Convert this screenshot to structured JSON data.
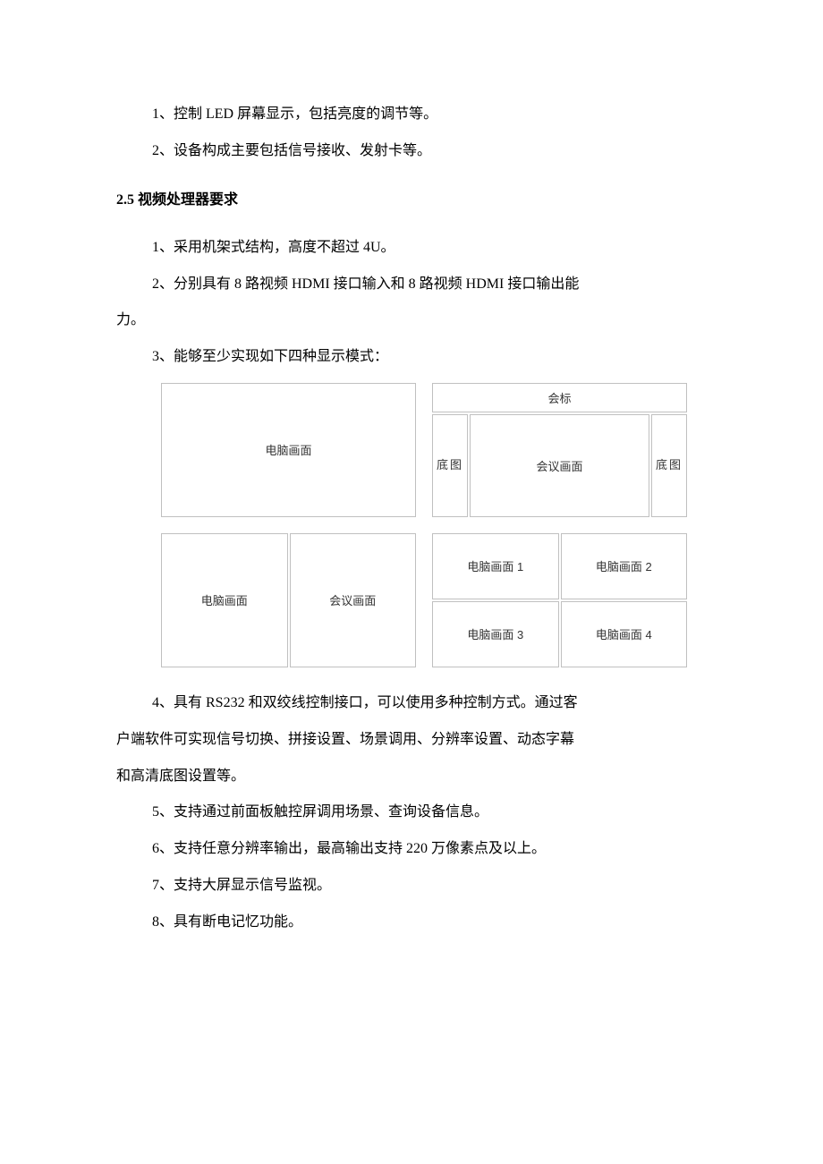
{
  "body": {
    "line1": "1、控制 LED 屏幕显示，包括亮度的调节等。",
    "line2": "2、设备构成主要包括信号接收、发射卡等。",
    "heading": "2.5 视频处理器要求",
    "line3": "1、采用机架式结构，高度不超过 4U。",
    "line4a": "2、分别具有 8 路视频 HDMI 接口输入和 8 路视频 HDMI 接口输出能",
    "line4b": "力。",
    "line5": "3、能够至少实现如下四种显示模式：",
    "line6": "4、具有 RS232 和双绞线控制接口，可以使用多种控制方式。通过客",
    "line6b": "户端软件可实现信号切换、拼接设置、场景调用、分辨率设置、动态字幕",
    "line6c": "和高清底图设置等。",
    "line7": "5、支持通过前面板触控屏调用场景、查询设备信息。",
    "line8": "6、支持任意分辨率输出，最高输出支持 220 万像素点及以上。",
    "line9": "7、支持大屏显示信号监视。",
    "line10": "8、具有断电记忆功能。"
  },
  "diagrams": {
    "mode1": {
      "label": "电脑画面"
    },
    "mode2": {
      "top": "会标",
      "left": "底图",
      "center": "会议画面",
      "right": "底图"
    },
    "mode3": {
      "left": "电脑画面",
      "right": "会议画面"
    },
    "mode4": {
      "q1": "电脑画面 1",
      "q2": "电脑画面 2",
      "q3": "电脑画面 3",
      "q4": "电脑画面 4"
    },
    "border_color": "#c0c0c0",
    "text_color": "#333333",
    "font_size": 13
  }
}
